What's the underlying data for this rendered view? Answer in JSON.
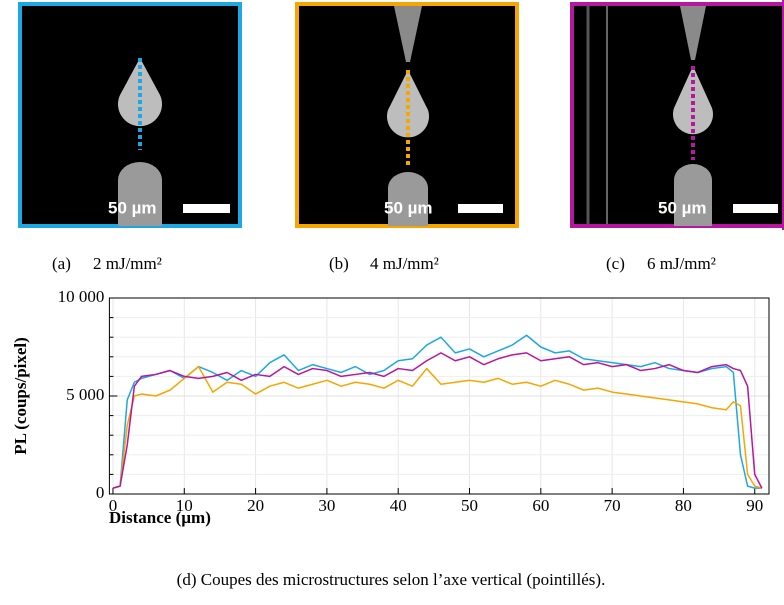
{
  "panels": [
    {
      "label": "(a)",
      "scale_bar": "50 µm"
    },
    {
      "label": "(b)",
      "scale_bar": "50 µm"
    },
    {
      "label": "(c)",
      "scale_bar": "50 µm"
    }
  ],
  "figure_caption": "(d) Coupes des microstructures selon l’axe vertical (pointillés).",
  "chart_data": {
    "type": "line",
    "xlabel": "Distance (µm)",
    "ylabel": "PL (coups/pixel)",
    "xlim": [
      -0.5,
      92
    ],
    "ylim": [
      0,
      10000
    ],
    "xticks": [
      0,
      10,
      20,
      30,
      40,
      50,
      60,
      70,
      80,
      90
    ],
    "yticks": [
      0,
      {
        "value": 5000,
        "label": "5 000"
      },
      {
        "value": 10000,
        "label": "10 000"
      }
    ],
    "yminorticks": [
      1000,
      2000,
      3000,
      4000,
      6000,
      7000,
      8000,
      9000
    ],
    "grid": true,
    "x": [
      0,
      1,
      2,
      3,
      4,
      6,
      8,
      10,
      12,
      14,
      16,
      18,
      20,
      22,
      24,
      26,
      28,
      30,
      32,
      34,
      36,
      38,
      40,
      42,
      44,
      46,
      48,
      50,
      52,
      54,
      56,
      58,
      60,
      62,
      64,
      66,
      68,
      70,
      72,
      74,
      76,
      78,
      80,
      82,
      84,
      86,
      87,
      88,
      89,
      90,
      91
    ],
    "series": [
      {
        "name": "2 mJ/mm²",
        "color": "#1ea8e3",
        "values": [
          300,
          400,
          4800,
          5700,
          5900,
          6100,
          6300,
          5900,
          6500,
          6200,
          5800,
          6300,
          6000,
          6700,
          7100,
          6300,
          6600,
          6400,
          6200,
          6500,
          6100,
          6300,
          6800,
          6900,
          7600,
          8000,
          7200,
          7400,
          7000,
          7300,
          7600,
          8100,
          7500,
          7200,
          7300,
          6900,
          6800,
          6700,
          6600,
          6500,
          6700,
          6400,
          6300,
          6200,
          6400,
          6500,
          6200,
          2000,
          400,
          300,
          300
        ]
      },
      {
        "name": "4 mJ/mm²",
        "color": "#f5a600",
        "values": [
          300,
          400,
          3500,
          5000,
          5100,
          5000,
          5300,
          5900,
          6500,
          5200,
          5700,
          5600,
          5100,
          5500,
          5700,
          5400,
          5600,
          5800,
          5500,
          5700,
          5600,
          5400,
          5800,
          5500,
          6400,
          5600,
          5700,
          5800,
          5700,
          5900,
          5600,
          5700,
          5500,
          5800,
          5600,
          5300,
          5400,
          5200,
          5100,
          5000,
          4900,
          4800,
          4700,
          4600,
          4400,
          4300,
          4700,
          4500,
          1000,
          400,
          300
        ]
      },
      {
        "name": "6 mJ/mm²",
        "color": "#b5179e",
        "values": [
          300,
          400,
          2500,
          5500,
          6000,
          6100,
          6300,
          6000,
          5900,
          6000,
          6200,
          5800,
          6100,
          6000,
          6500,
          6100,
          6400,
          6300,
          6000,
          6100,
          6200,
          6000,
          6400,
          6300,
          6800,
          7200,
          6800,
          7000,
          6600,
          6900,
          7100,
          7200,
          6800,
          6900,
          7000,
          6600,
          6700,
          6500,
          6600,
          6300,
          6400,
          6600,
          6300,
          6200,
          6500,
          6600,
          6400,
          6300,
          5500,
          1000,
          300
        ]
      }
    ]
  }
}
